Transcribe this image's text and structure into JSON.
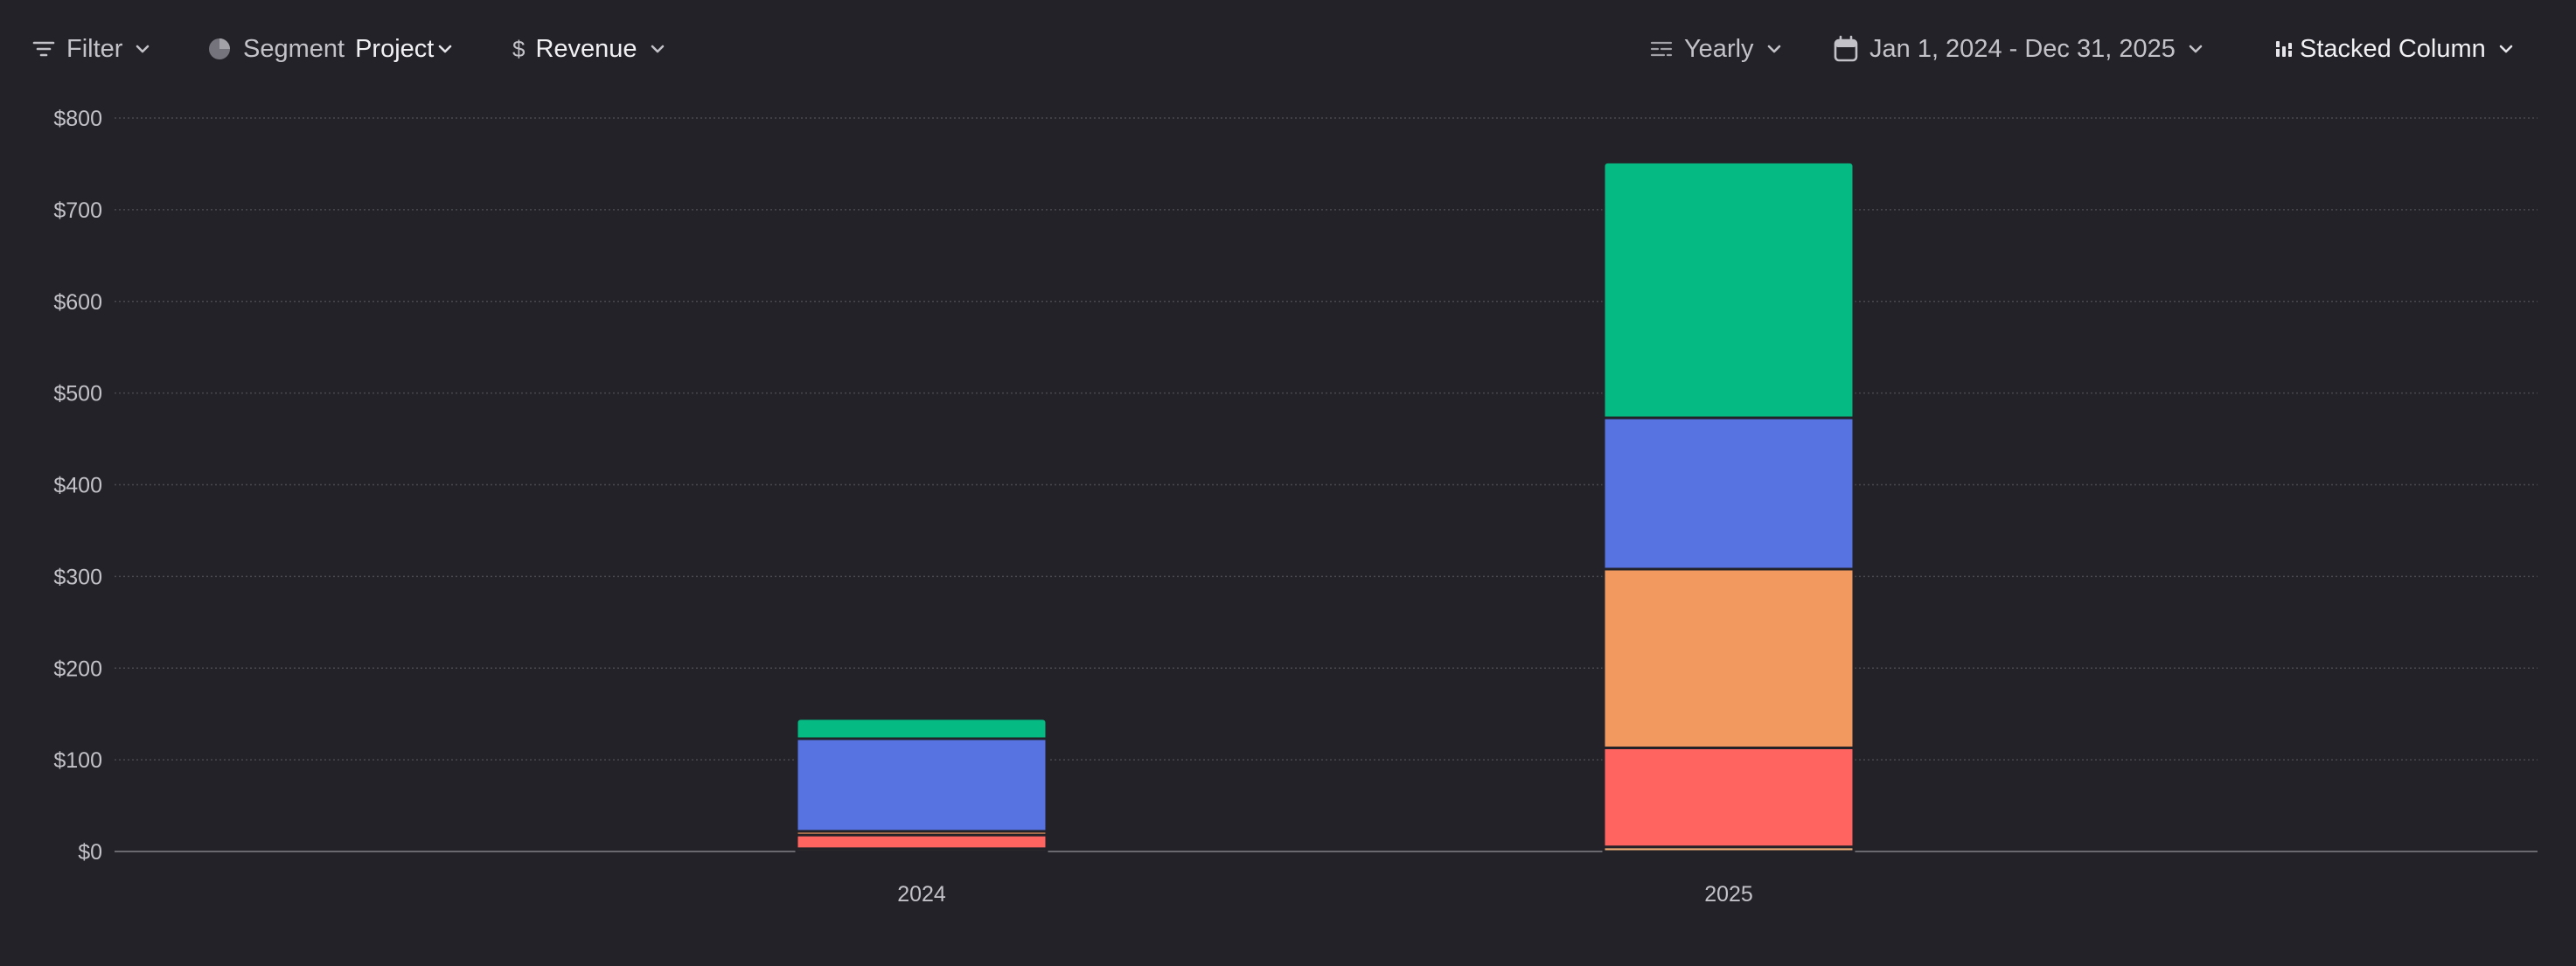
{
  "toolbar": {
    "filter_label": "Filter",
    "segment_label": "Segment",
    "segment_value": "Project",
    "metric_label": "Revenue",
    "period_label": "Yearly",
    "date_range": "Jan 1, 2024 - Dec 31, 2025",
    "chart_type_label": "Stacked Column",
    "icons": {
      "filter": "filter-icon",
      "segment": "pie-chart-icon",
      "metric": "dollar-icon",
      "period": "calendar-period-icon",
      "date": "calendar-icon",
      "chart_type": "bar-chart-icon"
    }
  },
  "chart_data": {
    "type": "bar",
    "stacked": true,
    "categories": [
      "2024",
      "2025"
    ],
    "series": [
      {
        "color": "#f0b27a",
        "values": [
          3,
          5
        ]
      },
      {
        "color": "#ff6461",
        "values": [
          15,
          108
        ]
      },
      {
        "color": "#f2995f",
        "values": [
          4,
          195
        ]
      },
      {
        "color": "#5673e1",
        "values": [
          101,
          165
        ]
      },
      {
        "color": "#05bb83",
        "values": [
          22,
          279
        ]
      }
    ],
    "ylim": [
      0,
      800
    ],
    "yticks": [
      0,
      100,
      200,
      300,
      400,
      500,
      600,
      700,
      800
    ],
    "ytick_labels": [
      "$0",
      "$100",
      "$200",
      "$300",
      "$400",
      "$500",
      "$600",
      "$700",
      "$800"
    ],
    "grid": true,
    "legend": "none"
  }
}
